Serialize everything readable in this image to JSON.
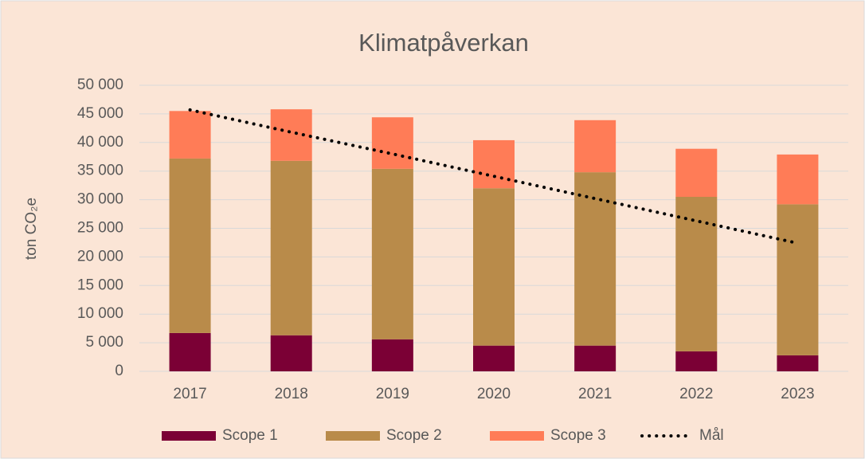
{
  "chart_data": {
    "type": "stacked_bar_line",
    "title": "Klimatpåverkan",
    "y_label": "ton CO₂e",
    "categories": [
      "2017",
      "2018",
      "2019",
      "2020",
      "2021",
      "2022",
      "2023"
    ],
    "series": [
      {
        "name": "Scope 1",
        "color": "#7b0035",
        "type": "bar",
        "values": [
          6700,
          6300,
          5600,
          4500,
          4500,
          3500,
          2800
        ]
      },
      {
        "name": "Scope 2",
        "color": "#b98b4a",
        "type": "bar",
        "values": [
          30500,
          30500,
          29800,
          27500,
          30300,
          27000,
          26400
        ]
      },
      {
        "name": "Scope 3",
        "color": "#ff7c57",
        "type": "bar",
        "values": [
          8300,
          9000,
          9000,
          8400,
          9100,
          8400,
          8700
        ]
      },
      {
        "name": "Mål",
        "color": "#000000",
        "type": "line",
        "values": [
          45700,
          41800,
          38000,
          34100,
          30200,
          26300,
          22400
        ]
      }
    ],
    "ylim": [
      0,
      50000
    ],
    "yticks": [
      0,
      {
        "value": 5000,
        "label": "5 000"
      },
      {
        "value": 10000,
        "label": "10 000"
      },
      {
        "value": 15000,
        "label": "15 000"
      },
      {
        "value": 20000,
        "label": "20 000"
      },
      {
        "value": 25000,
        "label": "25 000"
      },
      {
        "value": 30000,
        "label": "30 000"
      },
      {
        "value": 35000,
        "label": "35 000"
      },
      {
        "value": 40000,
        "label": "40 000"
      },
      {
        "value": 45000,
        "label": "45 000"
      },
      {
        "value": 50000,
        "label": "50 000"
      }
    ],
    "grid": true
  }
}
